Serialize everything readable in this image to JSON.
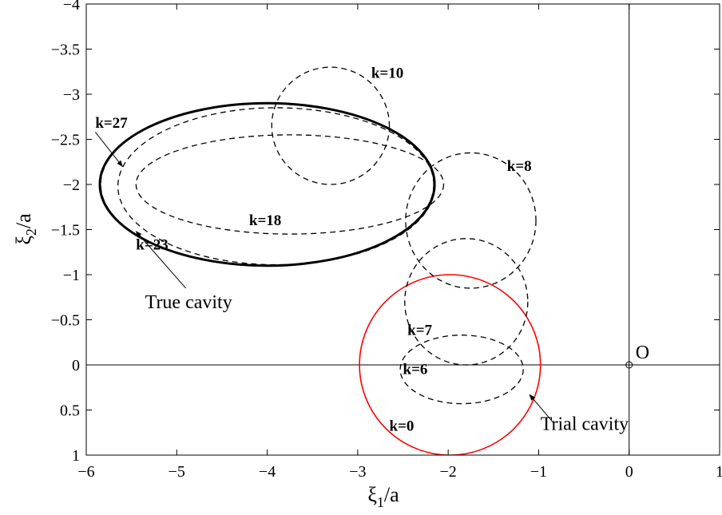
{
  "chart_data": {
    "type": "line",
    "title": "",
    "xlabel": "ξ",
    "xlabel_sub": "1",
    "xlabel_suffix": "/a",
    "ylabel": "ξ",
    "ylabel_sub": "2",
    "ylabel_suffix": "/a",
    "xlim": [
      -6,
      1
    ],
    "ylim": [
      1,
      -4
    ],
    "y_axis_reversed": true,
    "grid": false,
    "xticks": [
      -6,
      -5,
      -4,
      -3,
      -2,
      -1,
      0,
      1
    ],
    "xtick_labels": [
      "−6",
      "−5",
      "−4",
      "−3",
      "−2",
      "−1",
      "0",
      "1"
    ],
    "yticks": [
      -4,
      -3.5,
      -3,
      -2.5,
      -2,
      -1.5,
      -1,
      -0.5,
      0,
      0.5,
      1
    ],
    "ytick_labels": [
      "−4",
      "−3.5",
      "−3",
      "−2.5",
      "−2",
      "−1.5",
      "−1",
      "−0.5",
      "0",
      "0.5",
      "1"
    ],
    "zero_lines": {
      "x": 0,
      "y": 0
    },
    "origin": {
      "x": 0,
      "y": 0,
      "label": "O"
    },
    "series": [
      {
        "label": "",
        "role": "true",
        "style": "solid",
        "color": "#000000",
        "cx": -4.0,
        "cy": -2.0,
        "rx": 1.85,
        "ry": 0.9
      },
      {
        "label": "k=0",
        "role": "trial",
        "style": "solid",
        "color": "#ff0000",
        "cx": -1.98,
        "cy": 0.0,
        "rx": 1.0,
        "ry": 1.0
      },
      {
        "label": "k=6",
        "role": "iterate",
        "style": "dashed",
        "color": "#000000",
        "cx": -1.85,
        "cy": 0.05,
        "rx": 0.68,
        "ry": 0.38
      },
      {
        "label": "k=7",
        "role": "iterate",
        "style": "dashed",
        "color": "#000000",
        "cx": -1.8,
        "cy": -0.7,
        "rx": 0.68,
        "ry": 0.7
      },
      {
        "label": "k=8",
        "role": "iterate",
        "style": "dashed",
        "color": "#000000",
        "cx": -1.75,
        "cy": -1.6,
        "rx": 0.72,
        "ry": 0.75
      },
      {
        "label": "k=10",
        "role": "iterate",
        "style": "dashed",
        "color": "#000000",
        "cx": -3.3,
        "cy": -2.65,
        "rx": 0.65,
        "ry": 0.65
      },
      {
        "label": "k=18",
        "role": "iterate",
        "style": "dashed",
        "color": "#000000",
        "cx": -3.75,
        "cy": -2.0,
        "rx": 1.7,
        "ry": 0.55
      },
      {
        "label": "k=23",
        "role": "iterate",
        "style": "dashed",
        "color": "#000000",
        "cx": -3.9,
        "cy": -1.98,
        "rx": 1.75,
        "ry": 0.87
      },
      {
        "label": "k=27",
        "role": "iterate",
        "style": "dashed",
        "color": "#000000",
        "cx": -4.0,
        "cy": -2.0,
        "rx": 1.84,
        "ry": 0.9
      }
    ],
    "curve_labels": [
      {
        "text": "k=10",
        "x": -2.85,
        "y": -3.18
      },
      {
        "text": "k=27",
        "x": -5.9,
        "y": -2.63
      },
      {
        "text": "k=8",
        "x": -1.35,
        "y": -2.15
      },
      {
        "text": "k=18",
        "x": -4.2,
        "y": -1.55
      },
      {
        "text": "k=23",
        "x": -5.45,
        "y": -1.28
      },
      {
        "text": "k=7",
        "x": -2.45,
        "y": -0.33
      },
      {
        "text": "k=6",
        "x": -2.5,
        "y": 0.1
      },
      {
        "text": "k=0",
        "x": -2.65,
        "y": 0.73
      }
    ],
    "annotations": [
      {
        "text": "True cavity",
        "text_x": -5.35,
        "text_y": -0.63,
        "arrow_from_x": -4.9,
        "arrow_from_y": -0.85,
        "arrow_to_x": -5.45,
        "arrow_to_y": -1.48
      },
      {
        "text": "Trial cavity",
        "text_x": -0.98,
        "text_y": 0.72,
        "arrow_from_x": -0.83,
        "arrow_from_y": 0.65,
        "arrow_to_x": -1.1,
        "arrow_to_y": 0.33
      },
      {
        "text": "",
        "text_x": 0,
        "text_y": 0,
        "arrow_from_x": -5.9,
        "arrow_from_y": -2.58,
        "arrow_to_x": -5.6,
        "arrow_to_y": -2.2
      }
    ]
  }
}
